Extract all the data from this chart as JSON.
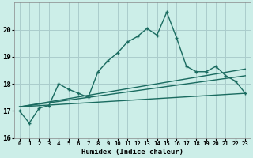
{
  "title": "",
  "xlabel": "Humidex (Indice chaleur)",
  "bg_color": "#cceee8",
  "grid_color": "#aacccc",
  "line_color": "#1a6b60",
  "xlim": [
    -0.5,
    23.5
  ],
  "ylim": [
    16,
    21
  ],
  "yticks": [
    16,
    17,
    18,
    19,
    20
  ],
  "xtick_labels": [
    "0",
    "1",
    "2",
    "3",
    "4",
    "5",
    "6",
    "7",
    "8",
    "9",
    "10",
    "11",
    "12",
    "13",
    "14",
    "15",
    "16",
    "17",
    "18",
    "19",
    "20",
    "21",
    "22",
    "23"
  ],
  "line1_x": [
    0,
    1,
    2,
    3,
    4,
    5,
    6,
    7,
    8,
    9,
    10,
    11,
    12,
    13,
    14,
    15,
    16,
    17,
    18,
    19,
    20,
    21,
    22,
    23
  ],
  "line1_y": [
    17.0,
    16.55,
    17.1,
    17.2,
    18.0,
    17.8,
    17.65,
    17.5,
    18.45,
    18.85,
    19.15,
    19.55,
    19.75,
    20.05,
    19.8,
    20.65,
    19.7,
    18.65,
    18.45,
    18.45,
    18.65,
    18.3,
    18.1,
    17.65
  ],
  "line2_x": [
    0,
    23
  ],
  "line2_y": [
    17.15,
    18.55
  ],
  "line3_x": [
    0,
    23
  ],
  "line3_y": [
    17.15,
    18.3
  ],
  "line4_x": [
    0,
    23
  ],
  "line4_y": [
    17.15,
    17.65
  ]
}
